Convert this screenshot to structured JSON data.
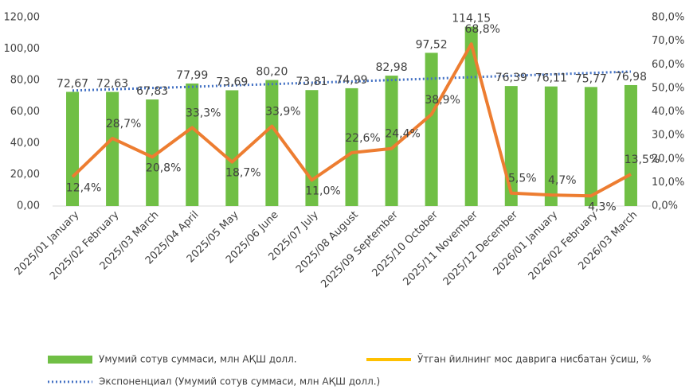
{
  "chart_data": {
    "type": "bar",
    "categories": [
      "2025/01 January",
      "2025/02 February",
      "2025/03 March",
      "2025/04 April",
      "2025/05 May",
      "2025/06 June",
      "2025/07 July",
      "2025/08 August",
      "2025/09 September",
      "2025/10 October",
      "2025/11 November",
      "2025/12 December",
      "2026/01 January",
      "2026/02 February",
      "2026/03 March"
    ],
    "series": [
      {
        "name": "Умумий сотув суммаси, млн АҚШ долл.",
        "type": "bar",
        "color": "#70bf45",
        "values": [
          72.67,
          72.63,
          67.83,
          77.99,
          73.69,
          80.2,
          73.81,
          74.99,
          82.98,
          97.52,
          114.15,
          76.39,
          76.11,
          75.77,
          76.98
        ],
        "value_labels": [
          "72,67",
          "72,63",
          "67,83",
          "77,99",
          "73,69",
          "80,20",
          "73,81",
          "74,99",
          "82,98",
          "97,52",
          "114,15",
          "76,39",
          "76,11",
          "75,77",
          "76,98"
        ]
      },
      {
        "name": "Ўтган йилнинг мос даврига нисбатан ўсиш, %",
        "type": "line",
        "axis": "y2",
        "color": "#ed7d31",
        "legend_color": "#ffc000",
        "values": [
          12.4,
          28.7,
          20.8,
          33.3,
          18.7,
          33.9,
          11.0,
          22.6,
          24.4,
          38.9,
          68.8,
          5.5,
          4.7,
          4.3,
          13.5
        ],
        "value_labels": [
          "12,4%",
          "28,7%",
          "20,8%",
          "33,3%",
          "18,7%",
          "33,9%",
          "11,0%",
          "22,6%",
          "24,4%",
          "38,9%",
          "68,8%",
          "5,5%",
          "4,7%",
          "4,3%",
          "13,5%"
        ]
      },
      {
        "name": "Экспоненциал (Умумий сотув суммаси, млн АҚШ долл.)",
        "type": "trend",
        "color": "#4472c4",
        "values": [
          73.5,
          74.3,
          75.1,
          75.9,
          76.8,
          77.6,
          78.5,
          79.3,
          80.2,
          81.1,
          82.0,
          82.9,
          83.8,
          84.7,
          85.6
        ]
      }
    ],
    "ylim": [
      0,
      120
    ],
    "yticks": [
      {
        "value": 0,
        "label": "0,00"
      },
      {
        "value": 20,
        "label": "20,00"
      },
      {
        "value": 40,
        "label": "40,00"
      },
      {
        "value": 60,
        "label": "60,00"
      },
      {
        "value": 80,
        "label": "80,00"
      },
      {
        "value": 100,
        "label": "100,00"
      },
      {
        "value": 120,
        "label": "120,00"
      }
    ],
    "y2lim": [
      0,
      80
    ],
    "y2ticks": [
      {
        "value": 0,
        "label": "0,0%"
      },
      {
        "value": 10,
        "label": "10,0%"
      },
      {
        "value": 20,
        "label": "20,0%"
      },
      {
        "value": 30,
        "label": "30,0%"
      },
      {
        "value": 40,
        "label": "40,0%"
      },
      {
        "value": 50,
        "label": "50,0%"
      },
      {
        "value": 60,
        "label": "60,0%"
      },
      {
        "value": 70,
        "label": "70,0%"
      },
      {
        "value": 80,
        "label": "80,0%"
      }
    ]
  }
}
